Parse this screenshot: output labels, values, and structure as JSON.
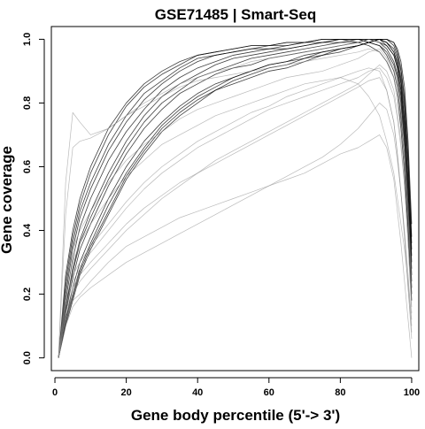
{
  "chart_data": {
    "type": "line",
    "title": "GSE71485 | Smart-Seq",
    "xlabel": "Gene body percentile (5'-> 3')",
    "ylabel": "Gene coverage",
    "xlim": [
      -1,
      102
    ],
    "ylim": [
      -0.04,
      1.04
    ],
    "x_ticks": [
      0,
      20,
      40,
      60,
      80,
      100
    ],
    "x_tick_labels": [
      "0",
      "20",
      "40",
      "60",
      "80",
      "100"
    ],
    "y_ticks": [
      0.0,
      0.2,
      0.4,
      0.6,
      0.8,
      1.0
    ],
    "y_tick_labels": [
      "0.0",
      "0.2",
      "0.4",
      "0.6",
      "0.8",
      "1.0"
    ],
    "grid": false,
    "legend": "none",
    "colors": {
      "dense_line": "#000000",
      "light_line": "#8c8c8c",
      "axis": "#000000",
      "background": "#ffffff"
    },
    "x": [
      1,
      3,
      5,
      7,
      10,
      15,
      20,
      25,
      30,
      35,
      40,
      45,
      50,
      55,
      60,
      65,
      70,
      75,
      80,
      85,
      88,
      91,
      93,
      95,
      96,
      97,
      98,
      99,
      100
    ],
    "series": [
      {
        "style": "dense",
        "values": [
          0.0,
          0.12,
          0.22,
          0.3,
          0.38,
          0.5,
          0.6,
          0.68,
          0.74,
          0.79,
          0.83,
          0.86,
          0.88,
          0.9,
          0.92,
          0.93,
          0.95,
          0.96,
          0.97,
          0.98,
          0.99,
          1.0,
          0.99,
          0.96,
          0.92,
          0.86,
          0.74,
          0.56,
          0.3
        ]
      },
      {
        "style": "dense",
        "values": [
          0.0,
          0.16,
          0.28,
          0.37,
          0.46,
          0.58,
          0.68,
          0.76,
          0.82,
          0.86,
          0.89,
          0.92,
          0.94,
          0.95,
          0.96,
          0.97,
          0.98,
          0.99,
          0.99,
          1.0,
          1.0,
          1.0,
          0.99,
          0.97,
          0.94,
          0.88,
          0.78,
          0.6,
          0.36
        ]
      },
      {
        "style": "dense",
        "values": [
          0.0,
          0.2,
          0.34,
          0.44,
          0.53,
          0.65,
          0.74,
          0.81,
          0.86,
          0.9,
          0.93,
          0.95,
          0.96,
          0.97,
          0.97,
          0.98,
          0.99,
          1.0,
          1.0,
          1.0,
          1.0,
          0.99,
          0.98,
          0.95,
          0.91,
          0.84,
          0.72,
          0.52,
          0.26
        ]
      },
      {
        "style": "dense",
        "values": [
          0.0,
          0.1,
          0.18,
          0.26,
          0.34,
          0.45,
          0.56,
          0.64,
          0.71,
          0.76,
          0.8,
          0.84,
          0.86,
          0.88,
          0.9,
          0.91,
          0.93,
          0.95,
          0.96,
          0.98,
          0.99,
          1.0,
          1.0,
          0.98,
          0.95,
          0.9,
          0.8,
          0.62,
          0.34
        ]
      },
      {
        "style": "dense",
        "values": [
          0.0,
          0.24,
          0.38,
          0.48,
          0.58,
          0.7,
          0.79,
          0.85,
          0.89,
          0.92,
          0.95,
          0.96,
          0.97,
          0.98,
          0.98,
          0.99,
          0.99,
          1.0,
          1.0,
          1.0,
          0.99,
          0.98,
          0.96,
          0.92,
          0.88,
          0.8,
          0.66,
          0.46,
          0.22
        ]
      },
      {
        "style": "dense",
        "values": [
          0.0,
          0.14,
          0.25,
          0.34,
          0.42,
          0.54,
          0.64,
          0.72,
          0.78,
          0.83,
          0.86,
          0.89,
          0.91,
          0.92,
          0.94,
          0.95,
          0.96,
          0.97,
          0.98,
          0.99,
          1.0,
          1.0,
          0.98,
          0.95,
          0.91,
          0.84,
          0.7,
          0.5,
          0.28
        ]
      },
      {
        "style": "dense",
        "values": [
          0.0,
          0.18,
          0.31,
          0.41,
          0.5,
          0.62,
          0.71,
          0.78,
          0.84,
          0.88,
          0.91,
          0.93,
          0.95,
          0.96,
          0.97,
          0.97,
          0.98,
          0.99,
          1.0,
          1.0,
          1.0,
          0.99,
          0.97,
          0.93,
          0.89,
          0.82,
          0.68,
          0.48,
          0.24
        ]
      },
      {
        "style": "dense",
        "values": [
          0.0,
          0.12,
          0.2,
          0.28,
          0.36,
          0.48,
          0.58,
          0.66,
          0.73,
          0.78,
          0.82,
          0.85,
          0.88,
          0.9,
          0.92,
          0.93,
          0.94,
          0.96,
          0.97,
          0.98,
          0.99,
          1.0,
          1.0,
          0.99,
          0.96,
          0.91,
          0.82,
          0.64,
          0.38
        ]
      },
      {
        "style": "dense",
        "values": [
          0.0,
          0.22,
          0.36,
          0.46,
          0.55,
          0.67,
          0.76,
          0.83,
          0.87,
          0.91,
          0.94,
          0.95,
          0.96,
          0.97,
          0.98,
          0.98,
          0.99,
          0.99,
          1.0,
          1.0,
          0.99,
          0.98,
          0.95,
          0.9,
          0.85,
          0.76,
          0.62,
          0.42,
          0.2
        ]
      },
      {
        "style": "dense",
        "values": [
          0.0,
          0.15,
          0.27,
          0.36,
          0.44,
          0.56,
          0.66,
          0.74,
          0.8,
          0.84,
          0.88,
          0.9,
          0.92,
          0.94,
          0.95,
          0.96,
          0.97,
          0.98,
          0.99,
          0.99,
          1.0,
          1.0,
          0.99,
          0.96,
          0.93,
          0.87,
          0.75,
          0.55,
          0.32
        ]
      },
      {
        "style": "dense",
        "values": [
          0.0,
          0.26,
          0.4,
          0.5,
          0.6,
          0.72,
          0.8,
          0.86,
          0.9,
          0.93,
          0.95,
          0.96,
          0.97,
          0.98,
          0.98,
          0.99,
          0.99,
          1.0,
          1.0,
          0.99,
          0.98,
          0.96,
          0.93,
          0.88,
          0.82,
          0.72,
          0.58,
          0.4,
          0.18
        ]
      },
      {
        "style": "dense",
        "values": [
          0.0,
          0.11,
          0.19,
          0.27,
          0.35,
          0.46,
          0.57,
          0.65,
          0.72,
          0.77,
          0.81,
          0.84,
          0.87,
          0.89,
          0.91,
          0.92,
          0.94,
          0.95,
          0.97,
          0.98,
          0.99,
          1.0,
          1.0,
          0.99,
          0.97,
          0.93,
          0.85,
          0.68,
          0.42
        ]
      },
      {
        "style": "light",
        "values": [
          0.0,
          0.12,
          0.18,
          0.2,
          0.24,
          0.3,
          0.35,
          0.38,
          0.41,
          0.44,
          0.46,
          0.48,
          0.5,
          0.52,
          0.54,
          0.56,
          0.58,
          0.61,
          0.64,
          0.66,
          0.68,
          0.7,
          0.66,
          0.56,
          0.46,
          0.36,
          0.24,
          0.12,
          0.0
        ]
      },
      {
        "style": "light",
        "values": [
          0.0,
          0.14,
          0.22,
          0.26,
          0.3,
          0.36,
          0.42,
          0.47,
          0.51,
          0.55,
          0.58,
          0.61,
          0.64,
          0.67,
          0.7,
          0.73,
          0.76,
          0.79,
          0.82,
          0.85,
          0.87,
          0.88,
          0.84,
          0.74,
          0.64,
          0.52,
          0.38,
          0.22,
          0.06
        ]
      },
      {
        "style": "light",
        "values": [
          0.0,
          0.55,
          0.77,
          0.74,
          0.7,
          0.72,
          0.76,
          0.79,
          0.82,
          0.85,
          0.87,
          0.88,
          0.89,
          0.9,
          0.91,
          0.92,
          0.93,
          0.94,
          0.95,
          0.96,
          0.97,
          0.96,
          0.93,
          0.88,
          0.82,
          0.74,
          0.62,
          0.44,
          0.22
        ]
      },
      {
        "style": "light",
        "values": [
          0.0,
          0.45,
          0.66,
          0.68,
          0.69,
          0.72,
          0.76,
          0.8,
          0.83,
          0.86,
          0.88,
          0.9,
          0.91,
          0.93,
          0.94,
          0.95,
          0.96,
          0.97,
          0.98,
          0.99,
          1.0,
          0.99,
          0.96,
          0.91,
          0.86,
          0.78,
          0.66,
          0.48,
          0.26
        ]
      },
      {
        "style": "light",
        "values": [
          0.0,
          0.1,
          0.16,
          0.19,
          0.22,
          0.26,
          0.3,
          0.33,
          0.36,
          0.39,
          0.42,
          0.45,
          0.48,
          0.51,
          0.54,
          0.57,
          0.6,
          0.63,
          0.67,
          0.72,
          0.76,
          0.8,
          0.78,
          0.7,
          0.62,
          0.52,
          0.4,
          0.26,
          0.1
        ]
      },
      {
        "style": "light",
        "values": [
          0.0,
          0.16,
          0.24,
          0.28,
          0.33,
          0.4,
          0.47,
          0.53,
          0.58,
          0.62,
          0.66,
          0.69,
          0.72,
          0.75,
          0.78,
          0.8,
          0.82,
          0.84,
          0.86,
          0.88,
          0.9,
          0.91,
          0.88,
          0.82,
          0.75,
          0.66,
          0.54,
          0.36,
          0.16
        ]
      },
      {
        "style": "light",
        "values": [
          0.0,
          0.2,
          0.3,
          0.36,
          0.42,
          0.5,
          0.57,
          0.62,
          0.67,
          0.7,
          0.73,
          0.76,
          0.78,
          0.8,
          0.82,
          0.84,
          0.86,
          0.87,
          0.88,
          0.86,
          0.82,
          0.76,
          0.68,
          0.58,
          0.5,
          0.42,
          0.34,
          0.24,
          0.12
        ]
      },
      {
        "style": "light",
        "values": [
          0.0,
          0.18,
          0.26,
          0.3,
          0.35,
          0.42,
          0.49,
          0.55,
          0.6,
          0.64,
          0.68,
          0.71,
          0.74,
          0.77,
          0.79,
          0.82,
          0.84,
          0.86,
          0.88,
          0.9,
          0.91,
          0.9,
          0.84,
          0.74,
          0.64,
          0.52,
          0.38,
          0.22,
          0.08
        ]
      },
      {
        "style": "light",
        "values": [
          0.0,
          0.13,
          0.2,
          0.24,
          0.28,
          0.34,
          0.4,
          0.45,
          0.5,
          0.54,
          0.58,
          0.62,
          0.65,
          0.68,
          0.71,
          0.74,
          0.77,
          0.8,
          0.83,
          0.86,
          0.89,
          0.92,
          0.9,
          0.84,
          0.77,
          0.68,
          0.54,
          0.36,
          0.14
        ]
      },
      {
        "style": "light",
        "values": [
          0.0,
          0.24,
          0.34,
          0.4,
          0.46,
          0.55,
          0.62,
          0.67,
          0.71,
          0.75,
          0.78,
          0.8,
          0.82,
          0.84,
          0.86,
          0.88,
          0.89,
          0.9,
          0.92,
          0.94,
          0.96,
          0.97,
          0.94,
          0.88,
          0.82,
          0.74,
          0.62,
          0.44,
          0.2
        ]
      }
    ]
  }
}
